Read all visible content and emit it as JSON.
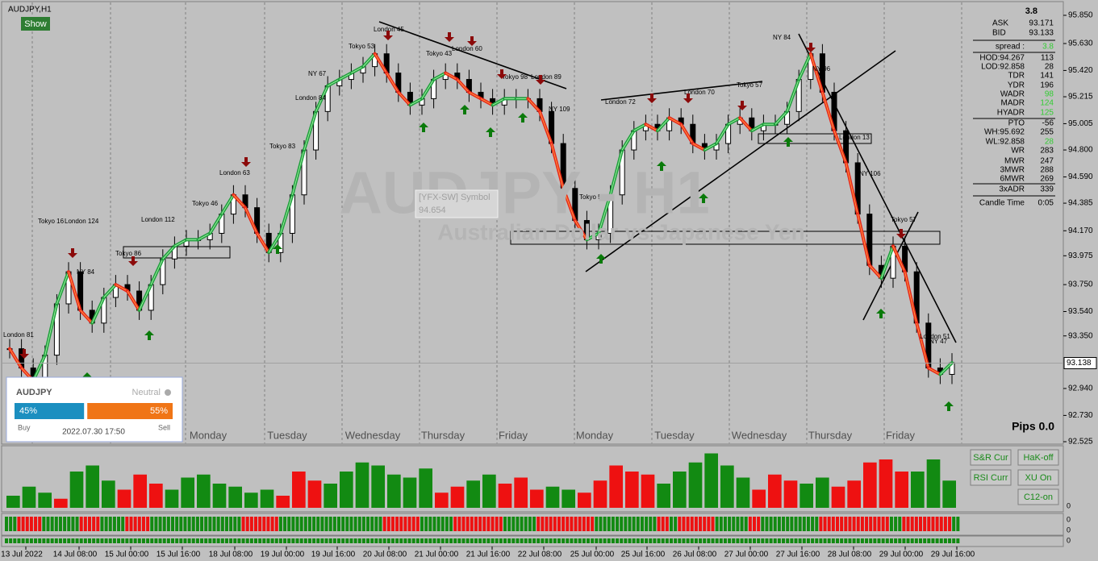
{
  "window": {
    "title": "AUDJPY,H1",
    "show_button": "Show",
    "watermark": "AUDJPY - H1",
    "watermark_sub": "Australian Dollar vs Japanese Yen",
    "pips": "Pips 0.0"
  },
  "price_axis": {
    "ticks": [
      {
        "value": 95.85,
        "label": "95.850"
      },
      {
        "value": 95.63,
        "label": "95.630"
      },
      {
        "value": 95.42,
        "label": "95.420"
      },
      {
        "value": 95.215,
        "label": "95.215"
      },
      {
        "value": 95.005,
        "label": "95.005"
      },
      {
        "value": 94.8,
        "label": "94.800"
      },
      {
        "value": 94.59,
        "label": "94.590"
      },
      {
        "value": 94.385,
        "label": "94.385"
      },
      {
        "value": 94.17,
        "label": "94.170"
      },
      {
        "value": 93.975,
        "label": "93.975"
      },
      {
        "value": 93.75,
        "label": "93.750"
      },
      {
        "value": 93.54,
        "label": "93.540"
      },
      {
        "value": 93.35,
        "label": "93.350"
      },
      {
        "value": 92.94,
        "label": "92.940"
      },
      {
        "value": 92.73,
        "label": "92.730"
      },
      {
        "value": 92.525,
        "label": "92.525"
      }
    ],
    "current": {
      "value": 93.138,
      "label": "93.138"
    }
  },
  "time_axis": [
    "13 Jul 2022",
    "14 Jul 08:00",
    "15 Jul 00:00",
    "15 Jul 16:00",
    "18 Jul 08:00",
    "19 Jul 00:00",
    "19 Jul 16:00",
    "20 Jul 08:00",
    "21 Jul 00:00",
    "21 Jul 16:00",
    "22 Jul 08:00",
    "25 Jul 00:00",
    "25 Jul 16:00",
    "26 Jul 08:00",
    "27 Jul 00:00",
    "27 Jul 16:00",
    "28 Jul 08:00",
    "29 Jul 00:00",
    "29 Jul 16:00"
  ],
  "days": [
    "Monday",
    "Tuesday",
    "Wednesday",
    "Thursday",
    "Friday",
    "Monday",
    "Tuesday",
    "Wednesday",
    "Thursday",
    "Friday"
  ],
  "tooltip": {
    "line1": "[YFX-SW] Symbol",
    "line2": "94.654"
  },
  "sentiment": {
    "symbol": "AUDJPY",
    "status": "Neutral",
    "buy": {
      "value": 45,
      "label": "45%"
    },
    "sell": {
      "value": 55,
      "label": "55%"
    },
    "buy_label": "Buy",
    "sell_label": "Sell",
    "time": "2022.07.30 17:50"
  },
  "stats": {
    "header": "3.8",
    "rows": [
      {
        "label": "ASK",
        "value": "93.171"
      },
      {
        "label": "BID",
        "value": "93.133"
      },
      {
        "label": "spread :",
        "value": "3.8",
        "color": "#33cc33"
      },
      {
        "label": "HOD:94.267",
        "value": "113"
      },
      {
        "label": "LOD:92.858",
        "value": "28"
      },
      {
        "label": "TDR",
        "value": "141"
      },
      {
        "label": "YDR",
        "value": "196"
      },
      {
        "label": "WADR",
        "value": "98",
        "color": "#33cc33"
      },
      {
        "label": "MADR",
        "value": "124",
        "color": "#33cc33"
      },
      {
        "label": "HYADR",
        "value": "125",
        "color": "#33cc33"
      },
      {
        "label": "PTO",
        "value": "-56"
      },
      {
        "label": "WH:95.692",
        "value": "255"
      },
      {
        "label": "WL:92.858",
        "value": "28",
        "color": "#33cc33"
      },
      {
        "label": "WR",
        "value": "283"
      },
      {
        "label": "MWR",
        "value": "247"
      },
      {
        "label": "3MWR",
        "value": "288"
      },
      {
        "label": "6MWR",
        "value": "269"
      },
      {
        "label": "3xADR",
        "value": "339"
      },
      {
        "label": "Candle Time",
        "value": "0:05"
      }
    ]
  },
  "buttons": [
    "S&R Cur",
    "HaK-off",
    "RSI Curr",
    "XU On",
    "C12-on"
  ],
  "sub_axis": [
    "0",
    "0",
    "0",
    "0"
  ],
  "annotations": [
    "London 81",
    "Tokyo 16",
    "London 124",
    "NY 84",
    "Tokyo 86",
    "London 112",
    "Tokyo 46",
    "London 63",
    "Tokyo 83",
    "NY 67",
    "London 84",
    "Tokyo 53",
    "London 45",
    "Tokyo 43",
    "London 60",
    "Tokyo 98",
    "London 89",
    "NY 109",
    "Tokyo 56",
    "London 72",
    "Tokyo 57",
    "London 70",
    "NY 84",
    "NY 96",
    "London 13",
    "NY 106",
    "Tokyo 57",
    "London 51",
    "NY 47"
  ],
  "price": {
    "closes": [
      93.25,
      93.1,
      93.0,
      93.2,
      93.6,
      93.85,
      93.55,
      93.45,
      93.65,
      93.75,
      93.7,
      93.55,
      93.75,
      93.95,
      94.05,
      94.1,
      94.1,
      94.15,
      94.3,
      94.45,
      94.35,
      94.15,
      94.0,
      94.15,
      94.45,
      94.8,
      95.1,
      95.3,
      95.35,
      95.4,
      95.45,
      95.55,
      95.4,
      95.25,
      95.15,
      95.2,
      95.35,
      95.4,
      95.35,
      95.25,
      95.2,
      95.15,
      95.2,
      95.2,
      95.2,
      95.1,
      94.85,
      94.5,
      94.25,
      94.1,
      94.15,
      94.45,
      94.8,
      94.95,
      95.0,
      94.95,
      95.05,
      95.0,
      94.85,
      94.8,
      94.85,
      95.0,
      95.05,
      94.95,
      95.0,
      95.0,
      95.1,
      95.35,
      95.55,
      95.25,
      94.95,
      94.7,
      94.3,
      93.9,
      93.8,
      94.05,
      93.85,
      93.45,
      93.1,
      93.05,
      93.14
    ]
  },
  "histogram": [
    20,
    35,
    25,
    -15,
    60,
    70,
    45,
    -30,
    -55,
    -40,
    30,
    50,
    55,
    40,
    35,
    25,
    30,
    -20,
    -60,
    -45,
    40,
    60,
    75,
    70,
    55,
    50,
    65,
    -25,
    -35,
    45,
    55,
    -40,
    -50,
    -30,
    35,
    30,
    -25,
    -45,
    -70,
    -60,
    -55,
    40,
    60,
    75,
    90,
    70,
    50,
    -30,
    -55,
    -45,
    40,
    50,
    -35,
    -45,
    -75,
    -80,
    -60,
    60,
    80,
    45
  ]
}
